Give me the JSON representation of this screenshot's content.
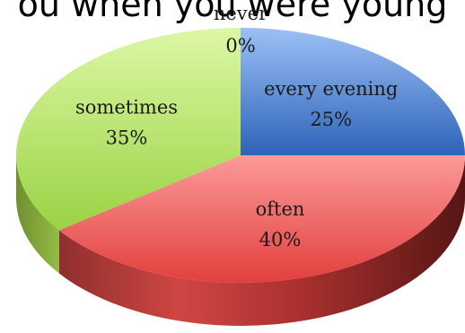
{
  "chart_data": {
    "type": "pie",
    "title": "ou when you were young",
    "slices": [
      {
        "label": "every evening",
        "value": 25,
        "value_label": "25%",
        "color": "#3f78c8"
      },
      {
        "label": "often",
        "value": 40,
        "value_label": "40%",
        "color": "#d6403e"
      },
      {
        "label": "sometimes",
        "value": 35,
        "value_label": "35%",
        "color": "#a4d24c"
      },
      {
        "label": "never",
        "value": 0,
        "value_label": "0%",
        "color": "#f0a040"
      }
    ],
    "style": "3d"
  }
}
